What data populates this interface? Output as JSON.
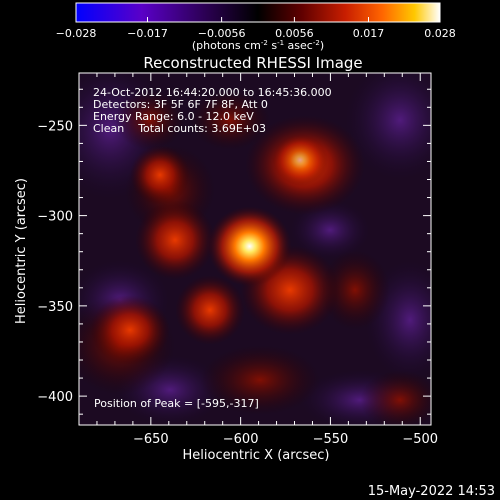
{
  "colorbar": {
    "ticks": [
      "-0.028",
      "-0.017",
      "-0.0056",
      "0.0056",
      "0.017",
      "0.028"
    ],
    "unit_main": "(photons cm",
    "unit_sup1": "-2",
    "unit_mid": " s",
    "unit_sup2": "-1",
    "unit_mid2": " asec",
    "unit_sup3": "-2",
    "unit_end": ")",
    "colors": [
      "#0000ff",
      "#5a00c8",
      "#3c0064",
      "#000000",
      "#640000",
      "#c81e00",
      "#ff6400",
      "#ffc800",
      "#ffffff"
    ]
  },
  "plot": {
    "title": "Reconstructed RHESSI Image",
    "info_lines": [
      "24-Oct-2012 16:44:20.000 to 16:45:36.000",
      "Detectors: 3F 5F 6F 7F 8F, Att 0",
      "Energy Range: 6.0 - 12.0 keV",
      "Clean    Total counts: 3.69E+03"
    ],
    "peak_label": "Position of Peak = [-595,-317]",
    "xlabel": "Heliocentric X (arcsec)",
    "ylabel": "Heliocentric Y (arcsec)",
    "x_ticks": [
      "-650",
      "-600",
      "-550",
      "-500"
    ],
    "y_ticks": [
      "-250",
      "-300",
      "-350",
      "-400"
    ],
    "x_range": [
      -690,
      -494
    ],
    "y_range": [
      -416,
      -221
    ],
    "peak": [
      -595,
      -317
    ]
  },
  "footer": {
    "timestamp": "15-May-2022 14:53"
  }
}
